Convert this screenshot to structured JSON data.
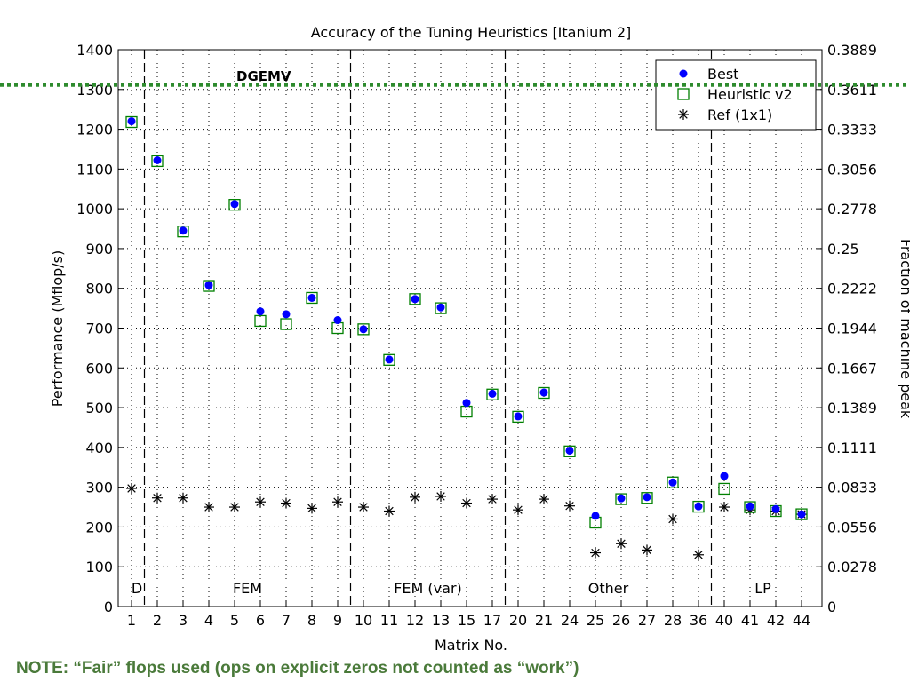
{
  "chart_data": {
    "type": "scatter",
    "title": "Accuracy of the Tuning Heuristics [Itanium 2]",
    "subtitle": "DGEMV",
    "xlabel": "Matrix No.",
    "ylabel": "Performance (Mflop/s)",
    "y2label": "Fraction of machine peak",
    "categories": [
      "1",
      "2",
      "3",
      "4",
      "5",
      "6",
      "7",
      "8",
      "9",
      "10",
      "11",
      "12",
      "13",
      "15",
      "17",
      "20",
      "21",
      "24",
      "25",
      "26",
      "27",
      "28",
      "36",
      "40",
      "41",
      "42",
      "44"
    ],
    "ylim": [
      0,
      1400
    ],
    "yticks": [
      0,
      100,
      200,
      300,
      400,
      500,
      600,
      700,
      800,
      900,
      1000,
      1100,
      1200,
      1300,
      1400
    ],
    "y2ticks": [
      "0",
      "0.0278",
      "0.0556",
      "0.0833",
      "0.1111",
      "0.1389",
      "0.1667",
      "0.1944",
      "0.2222",
      "0.25",
      "0.2778",
      "0.3056",
      "0.3333",
      "0.3611",
      "0.3889"
    ],
    "grid": true,
    "legend_position": "top-right",
    "series": [
      {
        "name": "Best",
        "marker": "filled-circle",
        "color": "#0000ff",
        "values": [
          1220,
          1122,
          945,
          808,
          1012,
          742,
          735,
          776,
          720,
          697,
          621,
          773,
          752,
          512,
          535,
          478,
          538,
          392,
          228,
          272,
          275,
          312,
          252,
          328,
          252,
          245,
          232
        ]
      },
      {
        "name": "Heuristic v2",
        "marker": "open-square",
        "color": "#008000",
        "values": [
          1218,
          1120,
          943,
          806,
          1010,
          718,
          710,
          776,
          700,
          697,
          620,
          773,
          750,
          490,
          533,
          477,
          537,
          390,
          211,
          270,
          273,
          312,
          251,
          296,
          250,
          240,
          232
        ]
      },
      {
        "name": "Ref (1x1)",
        "marker": "asterisk",
        "color": "#000000",
        "values": [
          297,
          273,
          273,
          250,
          250,
          263,
          260,
          247,
          263,
          250,
          240,
          275,
          277,
          260,
          270,
          243,
          270,
          253,
          135,
          158,
          142,
          220,
          130,
          250,
          243,
          240,
          232
        ]
      }
    ],
    "groups": [
      {
        "label": "D",
        "start": 0,
        "end": 0
      },
      {
        "label": "FEM",
        "start": 1,
        "end": 8
      },
      {
        "label": "FEM (var)",
        "start": 9,
        "end": 14
      },
      {
        "label": "Other",
        "start": 15,
        "end": 22
      },
      {
        "label": "LP",
        "start": 23,
        "end": 26
      }
    ],
    "peak_reference_value": 1310
  },
  "note": "NOTE: “Fair” flops used (ops on explicit zeros not counted as “work”)",
  "colors": {
    "note": "#4a7a3a",
    "reference_line": "#2e8b2e"
  }
}
